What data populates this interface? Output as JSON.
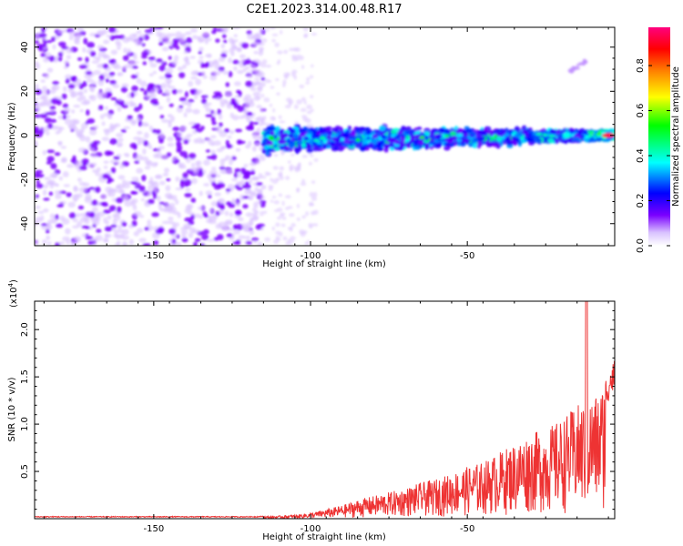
{
  "title": "C2E1.2023.314.00.48.R17",
  "chart_data": [
    {
      "type": "heatmap",
      "xlabel": "Height of straight line (km)",
      "ylabel": "Frequency (Hz)",
      "xlim": [
        -188,
        -3
      ],
      "ylim": [
        -50,
        49
      ],
      "x_ticks": [
        -150,
        -100,
        -50
      ],
      "y_ticks": [
        -40,
        -20,
        0,
        20,
        40
      ],
      "x_tick_labels": [
        "-150",
        "-100",
        "-50"
      ],
      "y_tick_labels": [
        "-40",
        "-20",
        "0",
        "20",
        "40"
      ],
      "grid": false,
      "colorbar": {
        "label": "Normalized spectral amplitude",
        "range": [
          0,
          0.97
        ],
        "ticks": [
          0.0,
          0.2,
          0.4,
          0.6,
          0.8
        ],
        "tick_labels": [
          "0.0",
          "0.2",
          "0.4",
          "0.6",
          "0.8"
        ],
        "colors": [
          "#ffffff",
          "#7a00ff",
          "#0000ff",
          "#00ffff",
          "#00ff00",
          "#ffff00",
          "#ff8000",
          "#ff0000",
          "#ff007f"
        ]
      },
      "regions": {
        "noise": {
          "x_range": [
            -188,
            -115
          ],
          "y_range": [
            -50,
            49
          ],
          "typical_amplitude": 0.05
        },
        "signal_band": {
          "x_range": [
            -115,
            -3
          ],
          "center_frequency": [
            -2,
            0
          ],
          "half_width_hz": [
            8,
            3
          ],
          "peak_amplitude": 0.95,
          "peak_x": -5
        },
        "secondary_trace": {
          "x_range": [
            -18,
            -12
          ],
          "y_range": [
            28,
            34
          ]
        }
      }
    },
    {
      "type": "line",
      "xlabel": "Height of straight line (km)",
      "ylabel": "SNR (10 * v/v)",
      "y_multiplier": "(x10",
      "y_multiplier_exp": "4",
      "y_multiplier_close": ")",
      "xlim": [
        -188,
        -3
      ],
      "ylim": [
        0,
        2.3
      ],
      "x_ticks": [
        -150,
        -100,
        -50
      ],
      "y_ticks": [
        0.5,
        1.0,
        1.5,
        2.0
      ],
      "x_tick_labels": [
        "-150",
        "-100",
        "-50"
      ],
      "y_tick_labels": [
        "0.5",
        "1.0",
        "1.5",
        "2.0"
      ],
      "grid": false,
      "series": [
        {
          "color": "#ee3333",
          "x": [
            -188,
            -170,
            -150,
            -130,
            -118,
            -110,
            -105,
            -100,
            -95,
            -90,
            -85,
            -80,
            -75,
            -70,
            -65,
            -60,
            -55,
            -50,
            -45,
            -40,
            -35,
            -30,
            -25,
            -20,
            -15,
            -10,
            -8,
            -5,
            -3
          ],
          "y": [
            0.02,
            0.02,
            0.02,
            0.02,
            0.02,
            0.03,
            0.04,
            0.06,
            0.1,
            0.14,
            0.2,
            0.24,
            0.28,
            0.32,
            0.38,
            0.42,
            0.48,
            0.55,
            0.6,
            0.7,
            0.8,
            0.9,
            0.95,
            1.05,
            1.2,
            1.3,
            1.35,
            1.55,
            1.7
          ],
          "peak": {
            "x": -12,
            "y": 2.3
          }
        }
      ]
    }
  ]
}
